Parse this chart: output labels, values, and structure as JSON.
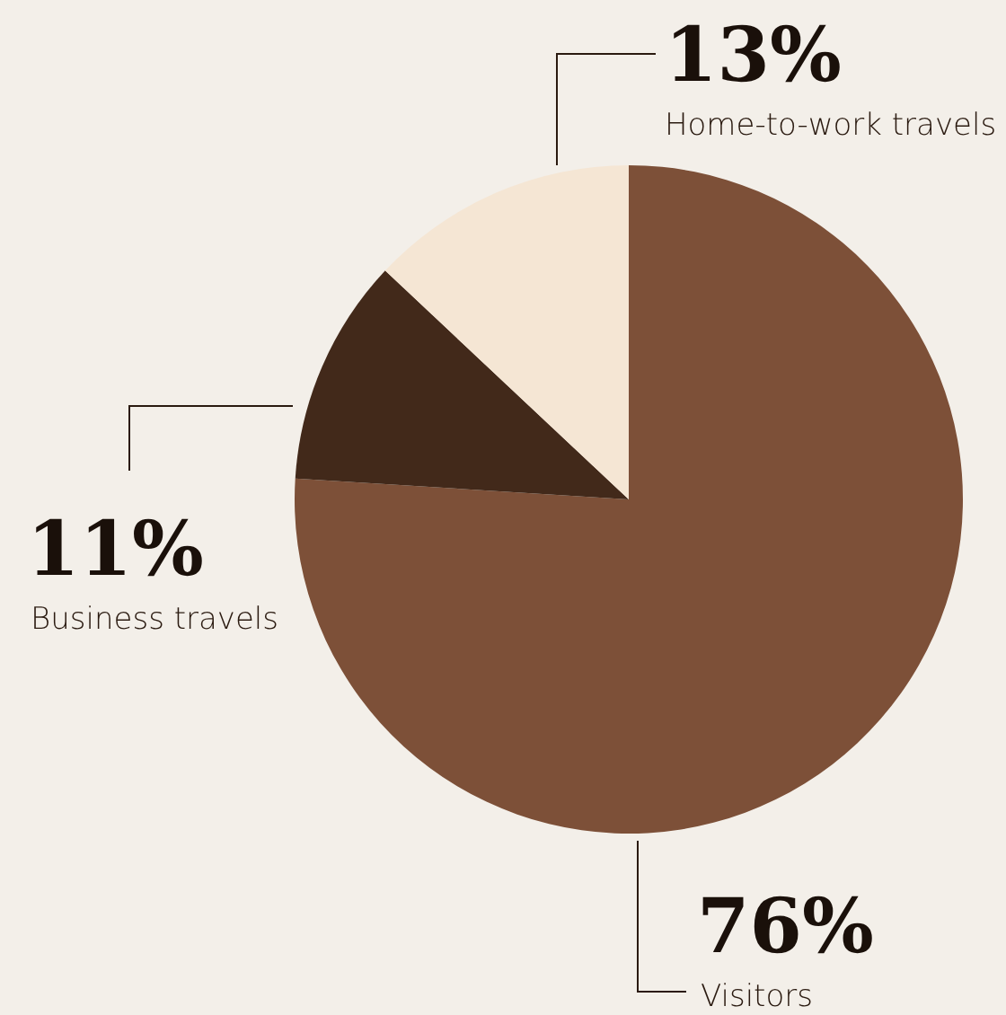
{
  "chart_data": {
    "type": "pie",
    "categories": [
      "Visitors",
      "Business travels",
      "Home-to-work travels"
    ],
    "values": [
      76,
      11,
      13
    ],
    "colors": [
      "#7d5038",
      "#42291a",
      "#f5e6d4"
    ],
    "value_labels": [
      "76%",
      "11%",
      "13%"
    ]
  }
}
